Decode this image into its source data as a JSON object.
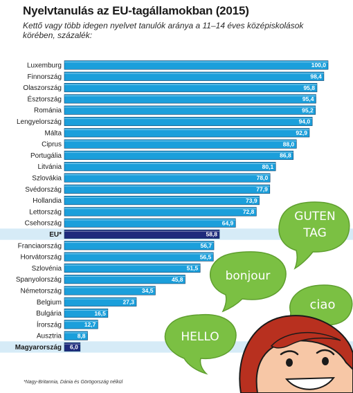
{
  "title": "Nyelvtanulás az EU-tagállamokban (2015)",
  "subtitle": "Kettő vagy több idegen nyelvet tanulók aránya a 11–14 éves középiskolások körében, százalék:",
  "footnote": "*Nagy-Britannia, Dánia és Görögország nélkül",
  "colors": {
    "bar": "#1b9fdb",
    "highlight_bar": "#1f2a7c",
    "highlight_row": "#d6ebf7",
    "bubble": "#7bc043",
    "bubble_dark": "#5e9e2e"
  },
  "bubbles": {
    "guten_line1": "GUTEN",
    "guten_line2": "TAG",
    "bonjour": "bonjour",
    "ciao": "ciao",
    "hello": "HELLO"
  },
  "chart_data": {
    "type": "bar",
    "orientation": "horizontal",
    "xlim": [
      0,
      100
    ],
    "categories": [
      "Luxemburg",
      "Finnország",
      "Olaszország",
      "Észtország",
      "Románia",
      "Lengyelország",
      "Málta",
      "Ciprus",
      "Portugália",
      "Litvánia",
      "Szlovákia",
      "Svédország",
      "Hollandia",
      "Lettország",
      "Csehország",
      "EU*",
      "Franciaország",
      "Horvátország",
      "Szlovénia",
      "Spanyolország",
      "Németország",
      "Belgium",
      "Bulgária",
      "Írország",
      "Ausztria",
      "Magyarország"
    ],
    "values": [
      100.0,
      98.4,
      95.8,
      95.4,
      95.2,
      94.0,
      92.9,
      88.0,
      86.8,
      80.1,
      78.0,
      77.9,
      73.9,
      72.8,
      64.9,
      58.8,
      56.7,
      56.5,
      51.5,
      45.8,
      34.5,
      27.3,
      16.5,
      12.7,
      8.8,
      6.0
    ],
    "value_labels": [
      "100,0",
      "98,4",
      "95,8",
      "95,4",
      "95,2",
      "94,0",
      "92,9",
      "88,0",
      "86,8",
      "80,1",
      "78,0",
      "77,9",
      "73,9",
      "72,8",
      "64,9",
      "58,8",
      "56,7",
      "56,5",
      "51,5",
      "45,8",
      "34,5",
      "27,3",
      "16,5",
      "12,7",
      "8,8",
      "6,0"
    ],
    "highlighted": [
      "EU*",
      "Magyarország"
    ]
  }
}
